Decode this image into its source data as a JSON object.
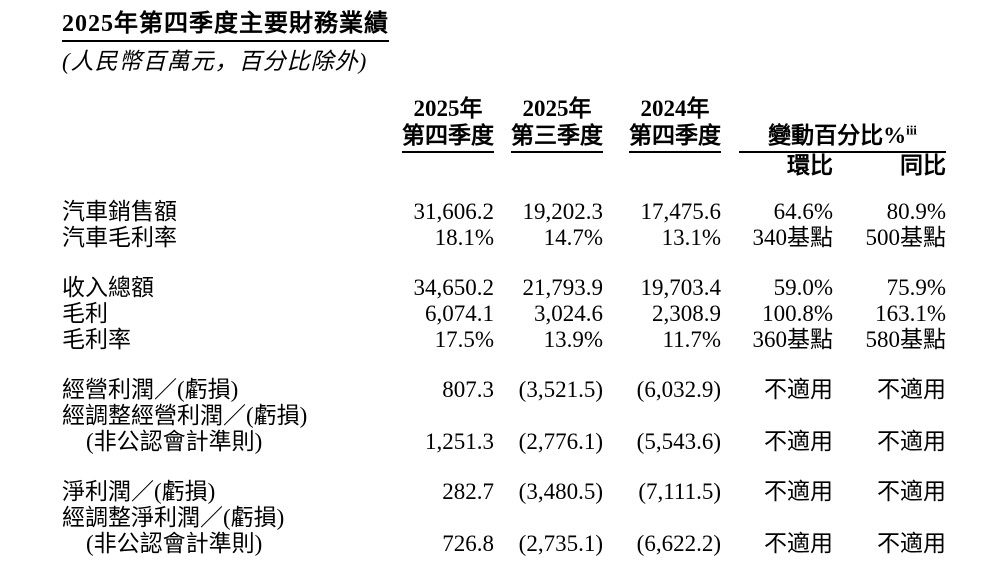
{
  "page": {
    "title": "2025年第四季度主要財務業績",
    "subtitle": "(人民幣百萬元，百分比除外)"
  },
  "colors": {
    "text": "#000000",
    "background": "#ffffff"
  },
  "table": {
    "period_headers": [
      {
        "year": "2025年",
        "quarter": "第四季度"
      },
      {
        "year": "2025年",
        "quarter": "第三季度"
      },
      {
        "year": "2024年",
        "quarter": "第四季度"
      }
    ],
    "change_header": {
      "label": "變動百分比%",
      "superscript": "iii"
    },
    "change_subheaders": [
      "環比",
      "同比"
    ],
    "rows": [
      {
        "label": "汽車銷售額",
        "values": [
          "31,606.2",
          "19,202.3",
          "17,475.6",
          "64.6%",
          "80.9%"
        ]
      },
      {
        "label": "汽車毛利率",
        "values": [
          "18.1%",
          "14.7%",
          "13.1%",
          "340基點",
          "500基點"
        ]
      },
      {
        "label": "收入總額",
        "group_start": true,
        "values": [
          "34,650.2",
          "21,793.9",
          "19,703.4",
          "59.0%",
          "75.9%"
        ]
      },
      {
        "label": "毛利",
        "values": [
          "6,074.1",
          "3,024.6",
          "2,308.9",
          "100.8%",
          "163.1%"
        ]
      },
      {
        "label": "毛利率",
        "values": [
          "17.5%",
          "13.9%",
          "11.7%",
          "360基點",
          "580基點"
        ]
      },
      {
        "label": "經營利潤／(虧損)",
        "group_start": true,
        "values": [
          "807.3",
          "(3,521.5)",
          "(6,032.9)",
          "不適用",
          "不適用"
        ]
      },
      {
        "label": "經調整經營利潤／(虧損)",
        "values": null
      },
      {
        "label": "(非公認會計準則)",
        "indent": true,
        "values": [
          "1,251.3",
          "(2,776.1)",
          "(5,543.6)",
          "不適用",
          "不適用"
        ]
      },
      {
        "label": "淨利潤／(虧損)",
        "group_start": true,
        "values": [
          "282.7",
          "(3,480.5)",
          "(7,111.5)",
          "不適用",
          "不適用"
        ]
      },
      {
        "label": "經調整淨利潤／(虧損)",
        "values": null
      },
      {
        "label": "(非公認會計準則)",
        "indent": true,
        "values": [
          "726.8",
          "(2,735.1)",
          "(6,622.2)",
          "不適用",
          "不適用"
        ]
      }
    ]
  }
}
